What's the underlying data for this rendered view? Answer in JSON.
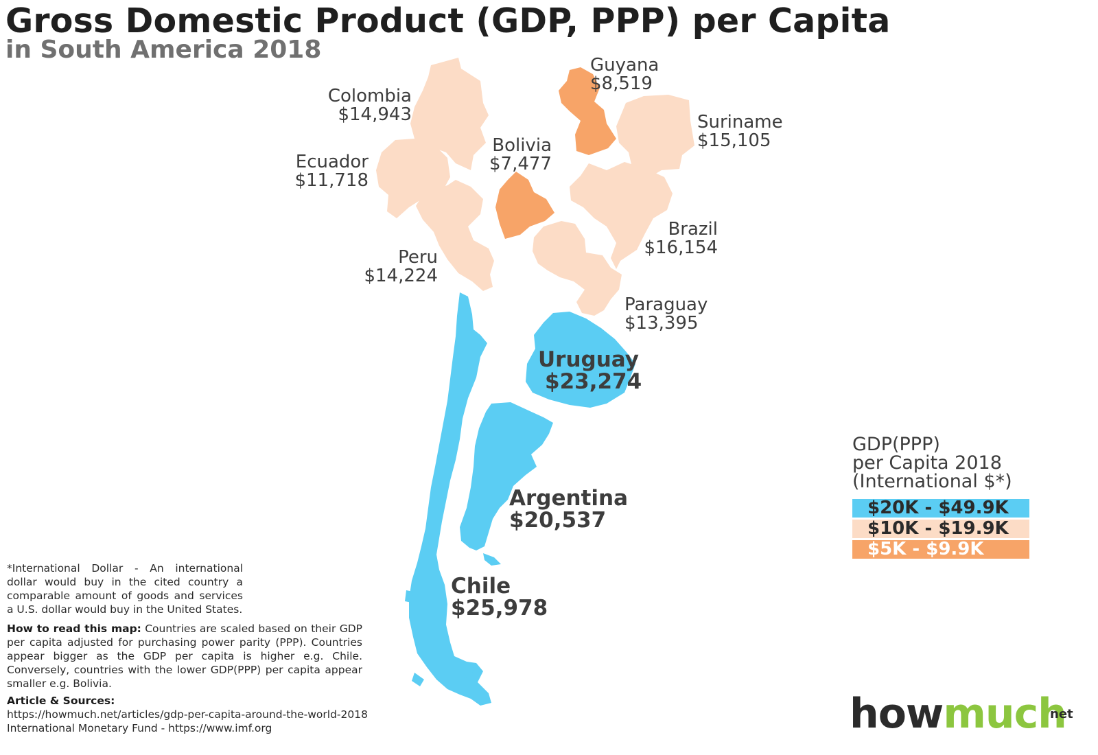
{
  "title": "Gross Domestic Product (GDP, PPP) per Capita",
  "subtitle": "in South America 2018",
  "countries": [
    {
      "name": "Colombia",
      "gdp": "$14,943",
      "tier": "10-19.9k"
    },
    {
      "name": "Guyana",
      "gdp": "$8,519",
      "tier": "5-9.9k"
    },
    {
      "name": "Suriname",
      "gdp": "$15,105",
      "tier": "10-19.9k"
    },
    {
      "name": "Ecuador",
      "gdp": "$11,718",
      "tier": "10-19.9k"
    },
    {
      "name": "Bolivia",
      "gdp": "$7,477",
      "tier": "5-9.9k"
    },
    {
      "name": "Brazil",
      "gdp": "$16,154",
      "tier": "10-19.9k"
    },
    {
      "name": "Peru",
      "gdp": "$14,224",
      "tier": "10-19.9k"
    },
    {
      "name": "Paraguay",
      "gdp": "$13,395",
      "tier": "10-19.9k"
    },
    {
      "name": "Uruguay",
      "gdp": "$23,274",
      "tier": "20-49.9k"
    },
    {
      "name": "Argentina",
      "gdp": "$20,537",
      "tier": "20-49.9k"
    },
    {
      "name": "Chile",
      "gdp": "$25,978",
      "tier": "20-49.9k"
    }
  ],
  "legend": {
    "title_lines": [
      "GDP(PPP)",
      "per Capita 2018",
      "(International $*)"
    ],
    "items": [
      {
        "label": "$20K - $49.9K",
        "color": "#5bcdf3"
      },
      {
        "label": "$10K - $19.9K",
        "color": "#fcdcc6"
      },
      {
        "label": "$5K - $9.9K",
        "color": "#f7a468"
      }
    ]
  },
  "footnote": "*International Dollar - An international dollar would buy in the cited country a comparable amount of goods and services a U.S. dollar would buy in the United States.",
  "how_to_read": {
    "heading": "How to read this map:",
    "text": " Countries are scaled based on their GDP per capita adjusted for purchasing power parity (PPP). Countries appear bigger as the GDP per capita is higher e.g. Chile. Conversely, countries with the lower GDP(PPP) per capita appear smaller e.g. Bolivia."
  },
  "sources": {
    "heading": "Article & Sources:",
    "lines": [
      "https://howmuch.net/articles/gdp-per-capita-around-the-world-2018",
      "International Monetary Fund - https://www.imf.org"
    ]
  },
  "brand": {
    "part1": "how",
    "part2": "much",
    "suffix": "net"
  },
  "colors": {
    "high": "#5bcdf3",
    "mid": "#fcdcc6",
    "low": "#f7a468"
  }
}
